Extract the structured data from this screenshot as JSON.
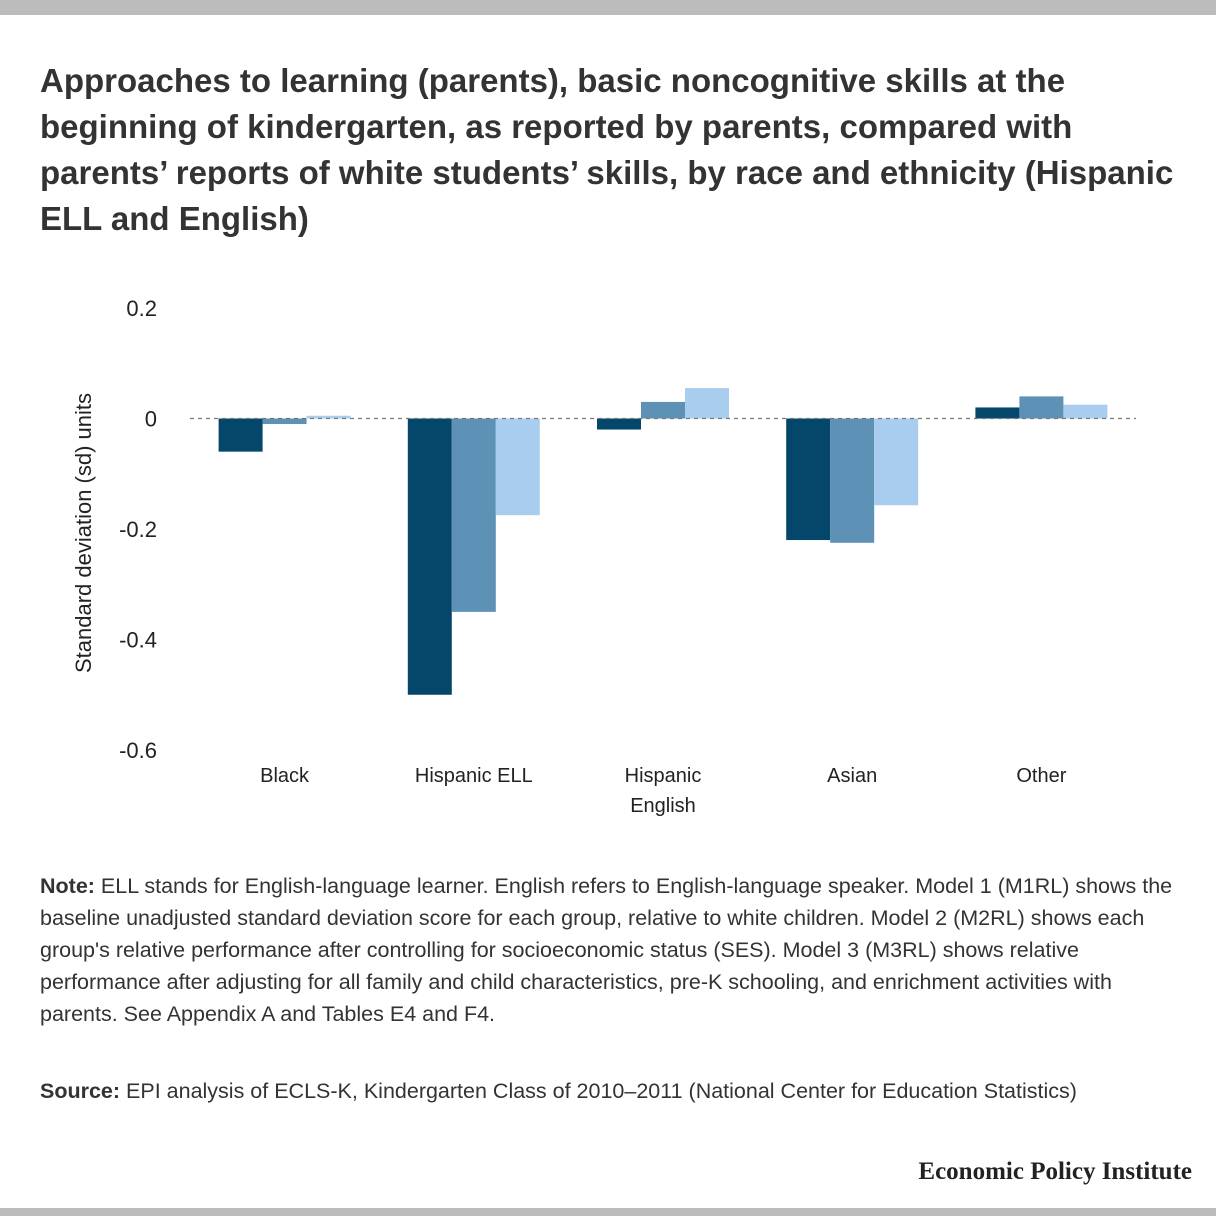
{
  "title": "Approaches to learning (parents), basic noncognitive skills at the beginning of kindergarten, as reported by parents, compared with parents’ reports of white students’ skills, by race and ethnicity (Hispanic ELL and English)",
  "note": {
    "label": "Note:",
    "text": " ELL stands for English-language learner. English refers to English-language speaker. Model 1 (M1RL) shows the baseline unadjusted standard deviation score for each group, relative to white children. Model 2 (M2RL) shows each group's relative performance after controlling for socioeconomic status (SES). Model 3 (M3RL) shows relative performance after adjusting for all family and child characteristics, pre-K schooling, and enrichment activities with parents. See Appendix A and Tables E4 and F4."
  },
  "source": {
    "label": "Source:",
    "text": " EPI analysis of ECLS-K, Kindergarten Class of 2010–2011 (National Center for Education Statistics)"
  },
  "brand": "Economic Policy Institute",
  "chart_data": {
    "type": "bar",
    "categories": [
      [
        "Black"
      ],
      [
        "Hispanic ELL"
      ],
      [
        "Hispanic",
        "English"
      ],
      [
        "Asian"
      ],
      [
        "Other"
      ]
    ],
    "series": [
      {
        "values": [
          -0.06,
          -0.5,
          -0.02,
          -0.22,
          0.02
        ],
        "color": "#04476a"
      },
      {
        "values": [
          -0.01,
          -0.35,
          0.03,
          -0.225,
          0.04
        ],
        "color": "#5e91b6"
      },
      {
        "values": [
          0.005,
          -0.175,
          0.055,
          -0.157,
          0.025
        ],
        "color": "#a8cdee"
      }
    ],
    "ylabel": "Standard deviation (sd) units",
    "yticks": [
      0.2,
      0,
      -0.2,
      -0.4,
      -0.6
    ],
    "ytick_labels": [
      "0.2",
      "0",
      "-0.2",
      "-0.4",
      "-0.6"
    ],
    "ylim": [
      -0.6,
      0.2
    ],
    "zero_line": "dashed",
    "grid": false,
    "legend": "none"
  }
}
